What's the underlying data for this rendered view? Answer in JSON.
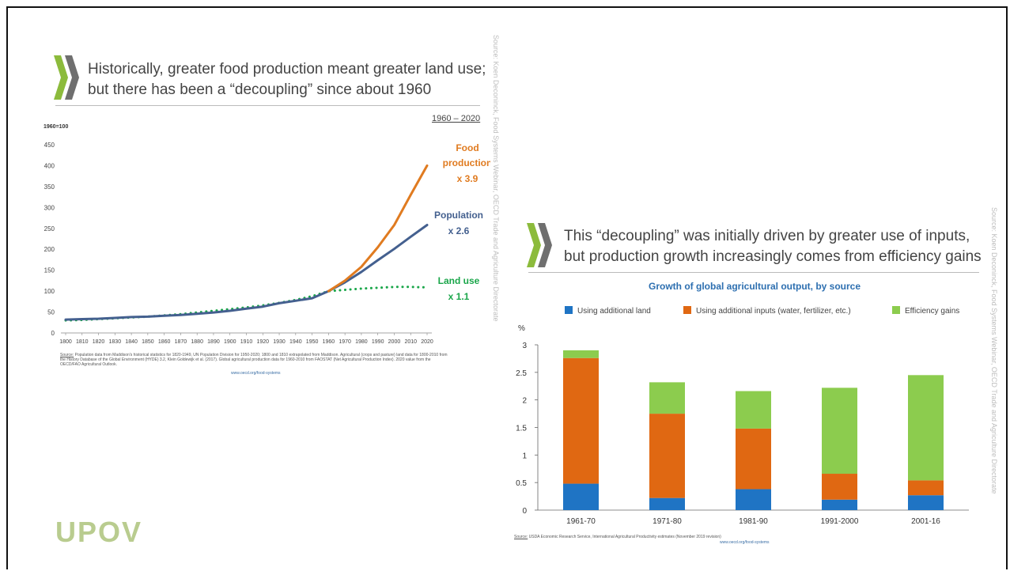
{
  "left_panel": {
    "title_line1": "Historically, greater food production meant greater land use;",
    "title_line2": "but there has been a “decoupling” since about 1960",
    "period_label": "1960 – 2020",
    "source_vertical": "Source: Koen Deconinck, Food Systems Webinar, OECD Trade and Agriculture Directorate",
    "footnote_label": "Source:",
    "footnote": "Population data from Maddison's historical statistics for 1820-1949, UN Population Division for 1950-2020; 1800 and 1810 extrapolated from Maddison. Agricultural (crops and pasture) land data for 1800-2010 from the History Database of the Global Environment (HYDE) 3.2, Klein Goldewijk et al. (2017). Global agricultural production data for 1960-2010 from FAOSTAT (Net Agricultural Production Index). 2020 value from the OECD/FAO Agricultural Outlook.",
    "link": "www.oecd.org/food-systems"
  },
  "right_panel": {
    "title_line1": "This “decoupling” was initially driven by greater use of inputs,",
    "title_line2": "but production growth increasingly comes from efficiency gains",
    "source_vertical": "Source: Koen Deconinck, Food Systems Webinar, OECD Trade and Agriculture Directorate",
    "footnote_label": "Source:",
    "footnote": "USDA Economic Research Service, International Agricultural Productivity estimates (November 2019 revision)",
    "link": "www.oecd.org/food-systems"
  },
  "logo": {
    "text": "UPOV",
    "color": "#b9cc8f"
  },
  "colors": {
    "food": "#e07b20",
    "population": "#44608f",
    "land": "#1aa64a",
    "land_bar": "#1f74c4",
    "inputs": "#e06812",
    "efficiency": "#8ccc4e"
  },
  "chart_data": [
    {
      "type": "line",
      "title": "",
      "ylabel": "1960=100",
      "xlabel": "",
      "ylim": [
        0,
        450
      ],
      "yticks": [
        0,
        50,
        100,
        150,
        200,
        250,
        300,
        350,
        400,
        450
      ],
      "x": [
        1800,
        1810,
        1820,
        1830,
        1840,
        1850,
        1860,
        1870,
        1880,
        1890,
        1900,
        1910,
        1920,
        1930,
        1940,
        1950,
        1960,
        1970,
        1980,
        1990,
        2000,
        2010,
        2020
      ],
      "series": [
        {
          "name": "Food production x 3.9",
          "label_line1": "Food",
          "label_line2": "production",
          "label_line3": "x 3.9",
          "color": "#e07b20",
          "style": "solid",
          "x": [
            1960,
            1970,
            1980,
            1990,
            2000,
            2010,
            2020
          ],
          "values": [
            100,
            125,
            158,
            205,
            258,
            330,
            400
          ]
        },
        {
          "name": "Population x 2.6",
          "label_line1": "Population",
          "label_line2": "x 2.6",
          "color": "#44608f",
          "style": "solid",
          "x": [
            1800,
            1810,
            1820,
            1830,
            1840,
            1850,
            1860,
            1870,
            1880,
            1890,
            1900,
            1910,
            1920,
            1930,
            1940,
            1950,
            1960,
            1970,
            1980,
            1990,
            2000,
            2010,
            2020
          ],
          "values": [
            32,
            33,
            34,
            36,
            38,
            39,
            41,
            43,
            46,
            49,
            53,
            58,
            63,
            71,
            77,
            83,
            100,
            121,
            146,
            174,
            201,
            230,
            258
          ]
        },
        {
          "name": "Land use x 1.1",
          "label_line1": "Land use",
          "label_line2": "x 1.1",
          "color": "#1aa64a",
          "style": "dotted",
          "x": [
            1800,
            1810,
            1820,
            1830,
            1840,
            1850,
            1860,
            1870,
            1880,
            1890,
            1900,
            1910,
            1920,
            1930,
            1940,
            1950,
            1960,
            1970,
            1980,
            1990,
            2000,
            2010,
            2020
          ],
          "values": [
            30,
            31,
            33,
            35,
            37,
            39,
            42,
            45,
            49,
            53,
            57,
            61,
            66,
            72,
            79,
            88,
            100,
            103,
            106,
            108,
            110,
            110,
            109
          ]
        }
      ]
    },
    {
      "type": "bar",
      "stacked": true,
      "title": "Growth of global agricultural output, by source",
      "ylabel": "%",
      "xlabel": "",
      "ylim": [
        0,
        3
      ],
      "yticks": [
        0,
        0.5,
        1,
        1.5,
        2,
        2.5,
        3
      ],
      "categories": [
        "1961-70",
        "1971-80",
        "1981-90",
        "1991-2000",
        "2001-16"
      ],
      "series": [
        {
          "name": "Using additional land",
          "color": "#1f74c4",
          "values": [
            0.48,
            0.22,
            0.38,
            0.19,
            0.27
          ]
        },
        {
          "name": "Using additional inputs (water, fertilizer, etc.)",
          "color": "#e06812",
          "values": [
            2.28,
            1.53,
            1.1,
            0.47,
            0.27
          ]
        },
        {
          "name": "Efficiency gains",
          "color": "#8ccc4e",
          "values": [
            0.14,
            0.57,
            0.68,
            1.56,
            1.91
          ]
        }
      ],
      "legend": "top"
    }
  ]
}
